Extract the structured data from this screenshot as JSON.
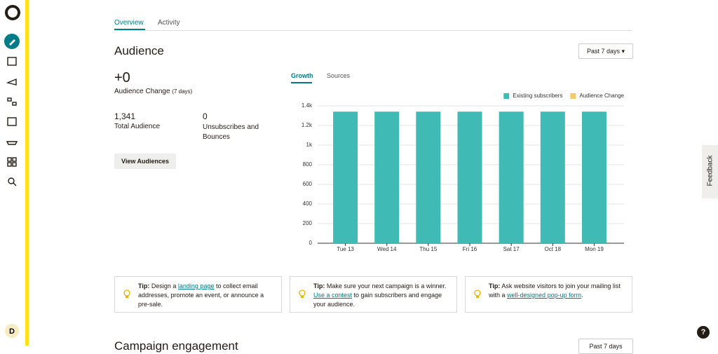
{
  "tabs": [
    "Overview",
    "Activity"
  ],
  "audience": {
    "title": "Audience",
    "range_button": "Past 7 days",
    "change": "+0",
    "change_label": "Audience Change",
    "change_period": "(7 days)",
    "total": "1,341",
    "total_label": "Total Audience",
    "unsub": "0",
    "unsub_label": "Unsubscribes and Bounces",
    "button": "View Audiences"
  },
  "chart_tabs": [
    "Growth",
    "Sources"
  ],
  "chart_data": {
    "type": "bar",
    "stacked": true,
    "legend": "top-right",
    "grid": true,
    "categories": [
      "Tue 13",
      "Wed 14",
      "Thu 15",
      "Fri 16",
      "Sat 17",
      "Oct 18",
      "Mon 19"
    ],
    "series": [
      {
        "name": "Existing subscribers",
        "color": "#40bab5",
        "values": [
          1341,
          1341,
          1341,
          1341,
          1341,
          1341,
          1341
        ]
      },
      {
        "name": "Audience Change",
        "color": "#f3c96b",
        "values": [
          0,
          0,
          0,
          0,
          0,
          0,
          0
        ]
      }
    ],
    "ylim": [
      0,
      1400
    ],
    "yticks": [
      0,
      200,
      400,
      600,
      800,
      {
        "value": 1000,
        "label": "1k"
      },
      {
        "value": 1200,
        "label": "1.2k"
      },
      {
        "value": 1400,
        "label": "1.4k"
      }
    ]
  },
  "tips": [
    {
      "lead": "Tip:",
      "before": "Design a",
      "link": "landing page",
      "after": "to collect email addresses, promote an event, or announce a pre-sale."
    },
    {
      "lead": "Tip:",
      "before": "Make sure your next campaign is a winner.",
      "link": "Use a contest",
      "after": "to gain subscribers and engage your audience."
    },
    {
      "lead": "Tip:",
      "before": "Ask website visitors to join your mailing list with a",
      "link": "well-designed pop-up form",
      "after": "."
    }
  ],
  "next_section": {
    "title": "Campaign engagement",
    "range_button": "Past 7 days"
  },
  "feedback": "Feedback",
  "avatar": "D",
  "help": "?"
}
